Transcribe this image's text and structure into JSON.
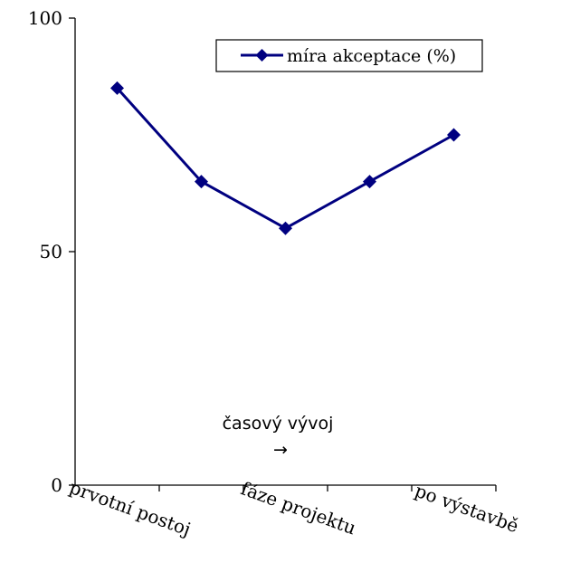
{
  "chart_data": {
    "type": "line",
    "title": "",
    "xlabel": "",
    "ylabel": "",
    "ylim": [
      0,
      100
    ],
    "yticks": [
      0,
      50,
      100
    ],
    "x_positions": 5,
    "x_tick_labels": [
      "prvotní postoj",
      "fáze projektu",
      "po výstavbě"
    ],
    "x_tick_label_positions": [
      1,
      3,
      5
    ],
    "series": [
      {
        "name": "míra akceptace (%)",
        "values": [
          85,
          65,
          55,
          65,
          75
        ],
        "color": "#000080"
      }
    ],
    "legend_position": "top-right",
    "grid": false,
    "annotations": [
      "časový vývoj",
      "→"
    ]
  }
}
